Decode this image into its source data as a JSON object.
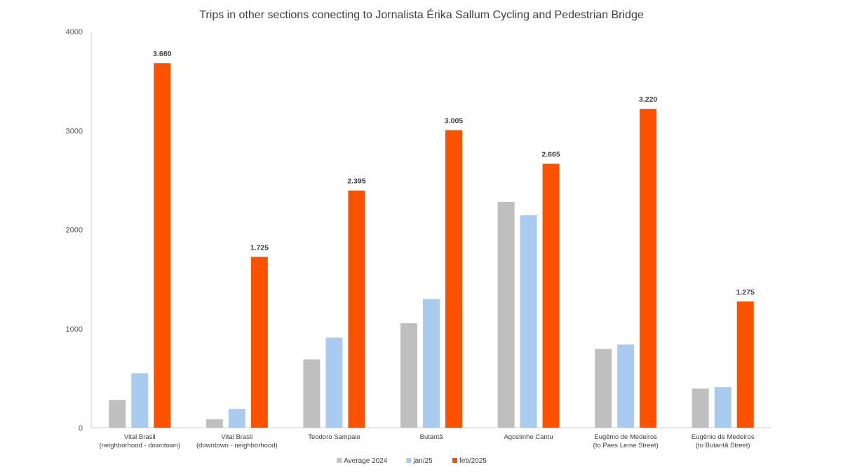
{
  "chart_data": {
    "type": "bar",
    "title": "Trips in other sections conecting to Jornalista Érika Sallum Cycling and Pedestrian Bridge",
    "xlabel": "",
    "ylabel": "",
    "ylim": [
      0,
      4000
    ],
    "yticks": [
      "0",
      "1000",
      "2000",
      "3000",
      "4000"
    ],
    "grid": false,
    "legend_position": "bottom",
    "categories": [
      [
        "Vital Brasil",
        "(neighborhood - downtown)"
      ],
      [
        "Vital Brasil",
        "(downtown - neighborhood)"
      ],
      [
        "Teodoro Sampaio"
      ],
      [
        "Butantã"
      ],
      [
        "Agostinho Cantu"
      ],
      [
        "Eugênio de Medeiros",
        "(to Paes Leme Street)"
      ],
      [
        "Eugênio de Medeiros",
        "(to Butantã Street)"
      ]
    ],
    "series": [
      {
        "name": "Average 2024",
        "color": "#bfbfbf",
        "values": [
          280,
          85,
          690,
          1055,
          2280,
          795,
          395
        ],
        "labels": [
          null,
          null,
          null,
          null,
          null,
          null,
          null
        ]
      },
      {
        "name": "jan/25",
        "color": "#a9cbef",
        "values": [
          550,
          190,
          910,
          1300,
          2145,
          840,
          410
        ],
        "labels": [
          null,
          null,
          null,
          null,
          null,
          null,
          null
        ]
      },
      {
        "name": "feb/2025",
        "color": "#fc5200",
        "values": [
          3680,
          1725,
          2395,
          3005,
          2665,
          3220,
          1275
        ],
        "labels": [
          "3.680",
          "1.725",
          "2.395",
          "3.005",
          "2.665",
          "3.220",
          "1.275"
        ]
      }
    ]
  }
}
